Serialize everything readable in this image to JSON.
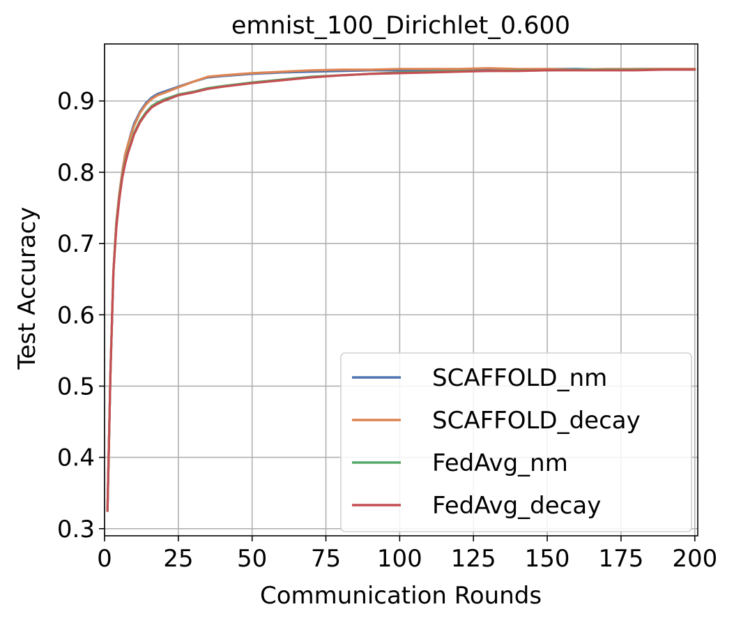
{
  "chart_data": {
    "type": "line",
    "title": "emnist_100_Dirichlet_0.600",
    "xlabel": "Communication Rounds",
    "ylabel": "Test Accuracy",
    "xlim": [
      0,
      201
    ],
    "ylim": [
      0.29,
      0.98
    ],
    "xticks": [
      0,
      25,
      50,
      75,
      100,
      125,
      150,
      175,
      200
    ],
    "yticks": [
      0.3,
      0.4,
      0.5,
      0.6,
      0.7,
      0.8,
      0.9
    ],
    "xtick_labels": [
      "0",
      "25",
      "50",
      "75",
      "100",
      "125",
      "150",
      "175",
      "200"
    ],
    "ytick_labels": [
      "0.3",
      "0.4",
      "0.5",
      "0.6",
      "0.7",
      "0.8",
      "0.9"
    ],
    "grid": true,
    "legend_position": "lower-right",
    "series": [
      {
        "name": "SCAFFOLD_nm",
        "color": "#4c72b0",
        "x": [
          1,
          2,
          3,
          4,
          5,
          6,
          7,
          8,
          9,
          10,
          12,
          14,
          16,
          18,
          20,
          25,
          30,
          35,
          40,
          50,
          60,
          70,
          80,
          90,
          100,
          110,
          120,
          130,
          140,
          150,
          160,
          170,
          180,
          190,
          200
        ],
        "y": [
          0.325,
          0.52,
          0.66,
          0.73,
          0.77,
          0.8,
          0.825,
          0.84,
          0.855,
          0.868,
          0.885,
          0.897,
          0.905,
          0.91,
          0.913,
          0.92,
          0.927,
          0.933,
          0.935,
          0.938,
          0.94,
          0.941,
          0.942,
          0.943,
          0.943,
          0.943,
          0.944,
          0.944,
          0.944,
          0.945,
          0.945,
          0.944,
          0.945,
          0.945,
          0.945
        ]
      },
      {
        "name": "SCAFFOLD_decay",
        "color": "#dd8452",
        "x": [
          1,
          2,
          3,
          4,
          5,
          6,
          7,
          8,
          9,
          10,
          12,
          14,
          16,
          18,
          20,
          25,
          30,
          35,
          40,
          50,
          60,
          70,
          80,
          90,
          100,
          110,
          120,
          130,
          140,
          150,
          160,
          170,
          180,
          190,
          200
        ],
        "y": [
          0.325,
          0.52,
          0.66,
          0.73,
          0.77,
          0.8,
          0.825,
          0.84,
          0.853,
          0.865,
          0.883,
          0.895,
          0.903,
          0.908,
          0.911,
          0.919,
          0.927,
          0.934,
          0.936,
          0.939,
          0.941,
          0.943,
          0.944,
          0.944,
          0.945,
          0.945,
          0.945,
          0.946,
          0.945,
          0.945,
          0.944,
          0.945,
          0.945,
          0.945,
          0.945
        ]
      },
      {
        "name": "FedAvg_nm",
        "color": "#55a868",
        "x": [
          1,
          2,
          3,
          4,
          5,
          6,
          7,
          8,
          9,
          10,
          12,
          14,
          16,
          18,
          20,
          25,
          30,
          35,
          40,
          50,
          60,
          70,
          80,
          90,
          100,
          110,
          120,
          130,
          140,
          150,
          160,
          170,
          180,
          190,
          200
        ],
        "y": [
          0.325,
          0.52,
          0.66,
          0.725,
          0.765,
          0.795,
          0.815,
          0.83,
          0.842,
          0.855,
          0.872,
          0.884,
          0.893,
          0.898,
          0.902,
          0.909,
          0.913,
          0.918,
          0.921,
          0.926,
          0.93,
          0.934,
          0.936,
          0.938,
          0.94,
          0.941,
          0.942,
          0.942,
          0.943,
          0.943,
          0.944,
          0.944,
          0.944,
          0.944,
          0.944
        ]
      },
      {
        "name": "FedAvg_decay",
        "color": "#c44e52",
        "x": [
          1,
          2,
          3,
          4,
          5,
          6,
          7,
          8,
          9,
          10,
          12,
          14,
          16,
          18,
          20,
          25,
          30,
          35,
          40,
          50,
          60,
          70,
          80,
          90,
          100,
          110,
          120,
          130,
          140,
          150,
          160,
          170,
          180,
          190,
          200
        ],
        "y": [
          0.325,
          0.52,
          0.66,
          0.722,
          0.762,
          0.792,
          0.812,
          0.828,
          0.84,
          0.853,
          0.87,
          0.882,
          0.891,
          0.896,
          0.9,
          0.908,
          0.912,
          0.917,
          0.92,
          0.925,
          0.929,
          0.933,
          0.936,
          0.938,
          0.939,
          0.94,
          0.941,
          0.942,
          0.942,
          0.943,
          0.943,
          0.943,
          0.943,
          0.944,
          0.944
        ]
      }
    ]
  }
}
